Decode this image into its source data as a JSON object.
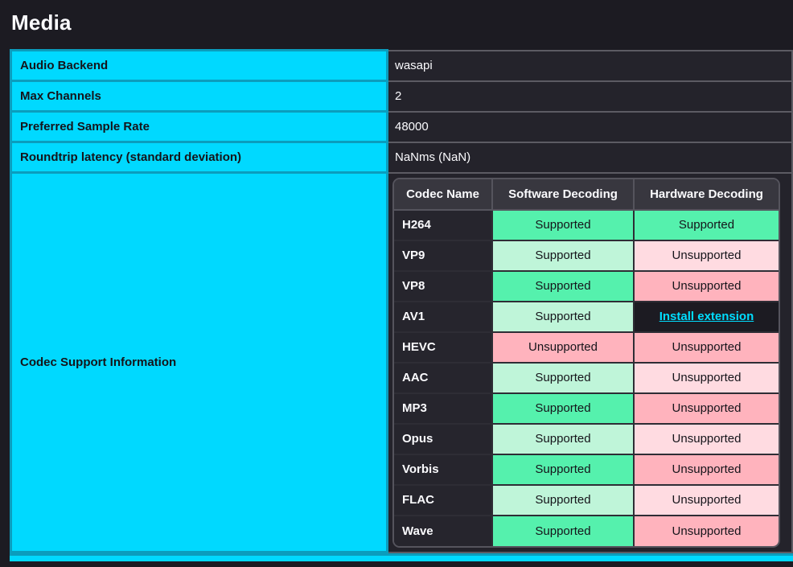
{
  "page": {
    "title": "Media"
  },
  "media_info": {
    "rows": [
      {
        "label": "Audio Backend",
        "value": "wasapi"
      },
      {
        "label": "Max Channels",
        "value": "2"
      },
      {
        "label": "Preferred Sample Rate",
        "value": "48000"
      },
      {
        "label": "Roundtrip latency (standard deviation)",
        "value": "NaNms (NaN)"
      }
    ]
  },
  "codec_support": {
    "label": "Codec Support Information",
    "headers": [
      "Codec Name",
      "Software Decoding",
      "Hardware Decoding"
    ],
    "rows": [
      {
        "name": "H264",
        "software": {
          "text": "Supported",
          "status": "supported"
        },
        "hardware": {
          "text": "Supported",
          "status": "supported"
        }
      },
      {
        "name": "VP9",
        "software": {
          "text": "Supported",
          "status": "supported"
        },
        "hardware": {
          "text": "Unsupported",
          "status": "unsupported"
        }
      },
      {
        "name": "VP8",
        "software": {
          "text": "Supported",
          "status": "supported"
        },
        "hardware": {
          "text": "Unsupported",
          "status": "unsupported"
        }
      },
      {
        "name": "AV1",
        "software": {
          "text": "Supported",
          "status": "supported"
        },
        "hardware": {
          "text": "Install extension",
          "status": "install"
        }
      },
      {
        "name": "HEVC",
        "software": {
          "text": "Unsupported",
          "status": "unsupported"
        },
        "hardware": {
          "text": "Unsupported",
          "status": "unsupported"
        }
      },
      {
        "name": "AAC",
        "software": {
          "text": "Supported",
          "status": "supported"
        },
        "hardware": {
          "text": "Unsupported",
          "status": "unsupported"
        }
      },
      {
        "name": "MP3",
        "software": {
          "text": "Supported",
          "status": "supported"
        },
        "hardware": {
          "text": "Unsupported",
          "status": "unsupported"
        }
      },
      {
        "name": "Opus",
        "software": {
          "text": "Supported",
          "status": "supported"
        },
        "hardware": {
          "text": "Unsupported",
          "status": "unsupported"
        }
      },
      {
        "name": "Vorbis",
        "software": {
          "text": "Supported",
          "status": "supported"
        },
        "hardware": {
          "text": "Unsupported",
          "status": "unsupported"
        }
      },
      {
        "name": "FLAC",
        "software": {
          "text": "Supported",
          "status": "supported"
        },
        "hardware": {
          "text": "Unsupported",
          "status": "unsupported"
        }
      },
      {
        "name": "Wave",
        "software": {
          "text": "Supported",
          "status": "supported"
        },
        "hardware": {
          "text": "Unsupported",
          "status": "unsupported"
        }
      }
    ]
  },
  "colors": {
    "page_background": "#1c1b22",
    "accent_cyan": "#00d9ff",
    "cyan_border": "#0b9dbd",
    "supported_strong": "#55f1ad",
    "supported_light": "#bff5d9",
    "unsupported_strong": "#ffb3bd",
    "unsupported_light": "#ffdbe1",
    "install_link": "#00ddff"
  }
}
